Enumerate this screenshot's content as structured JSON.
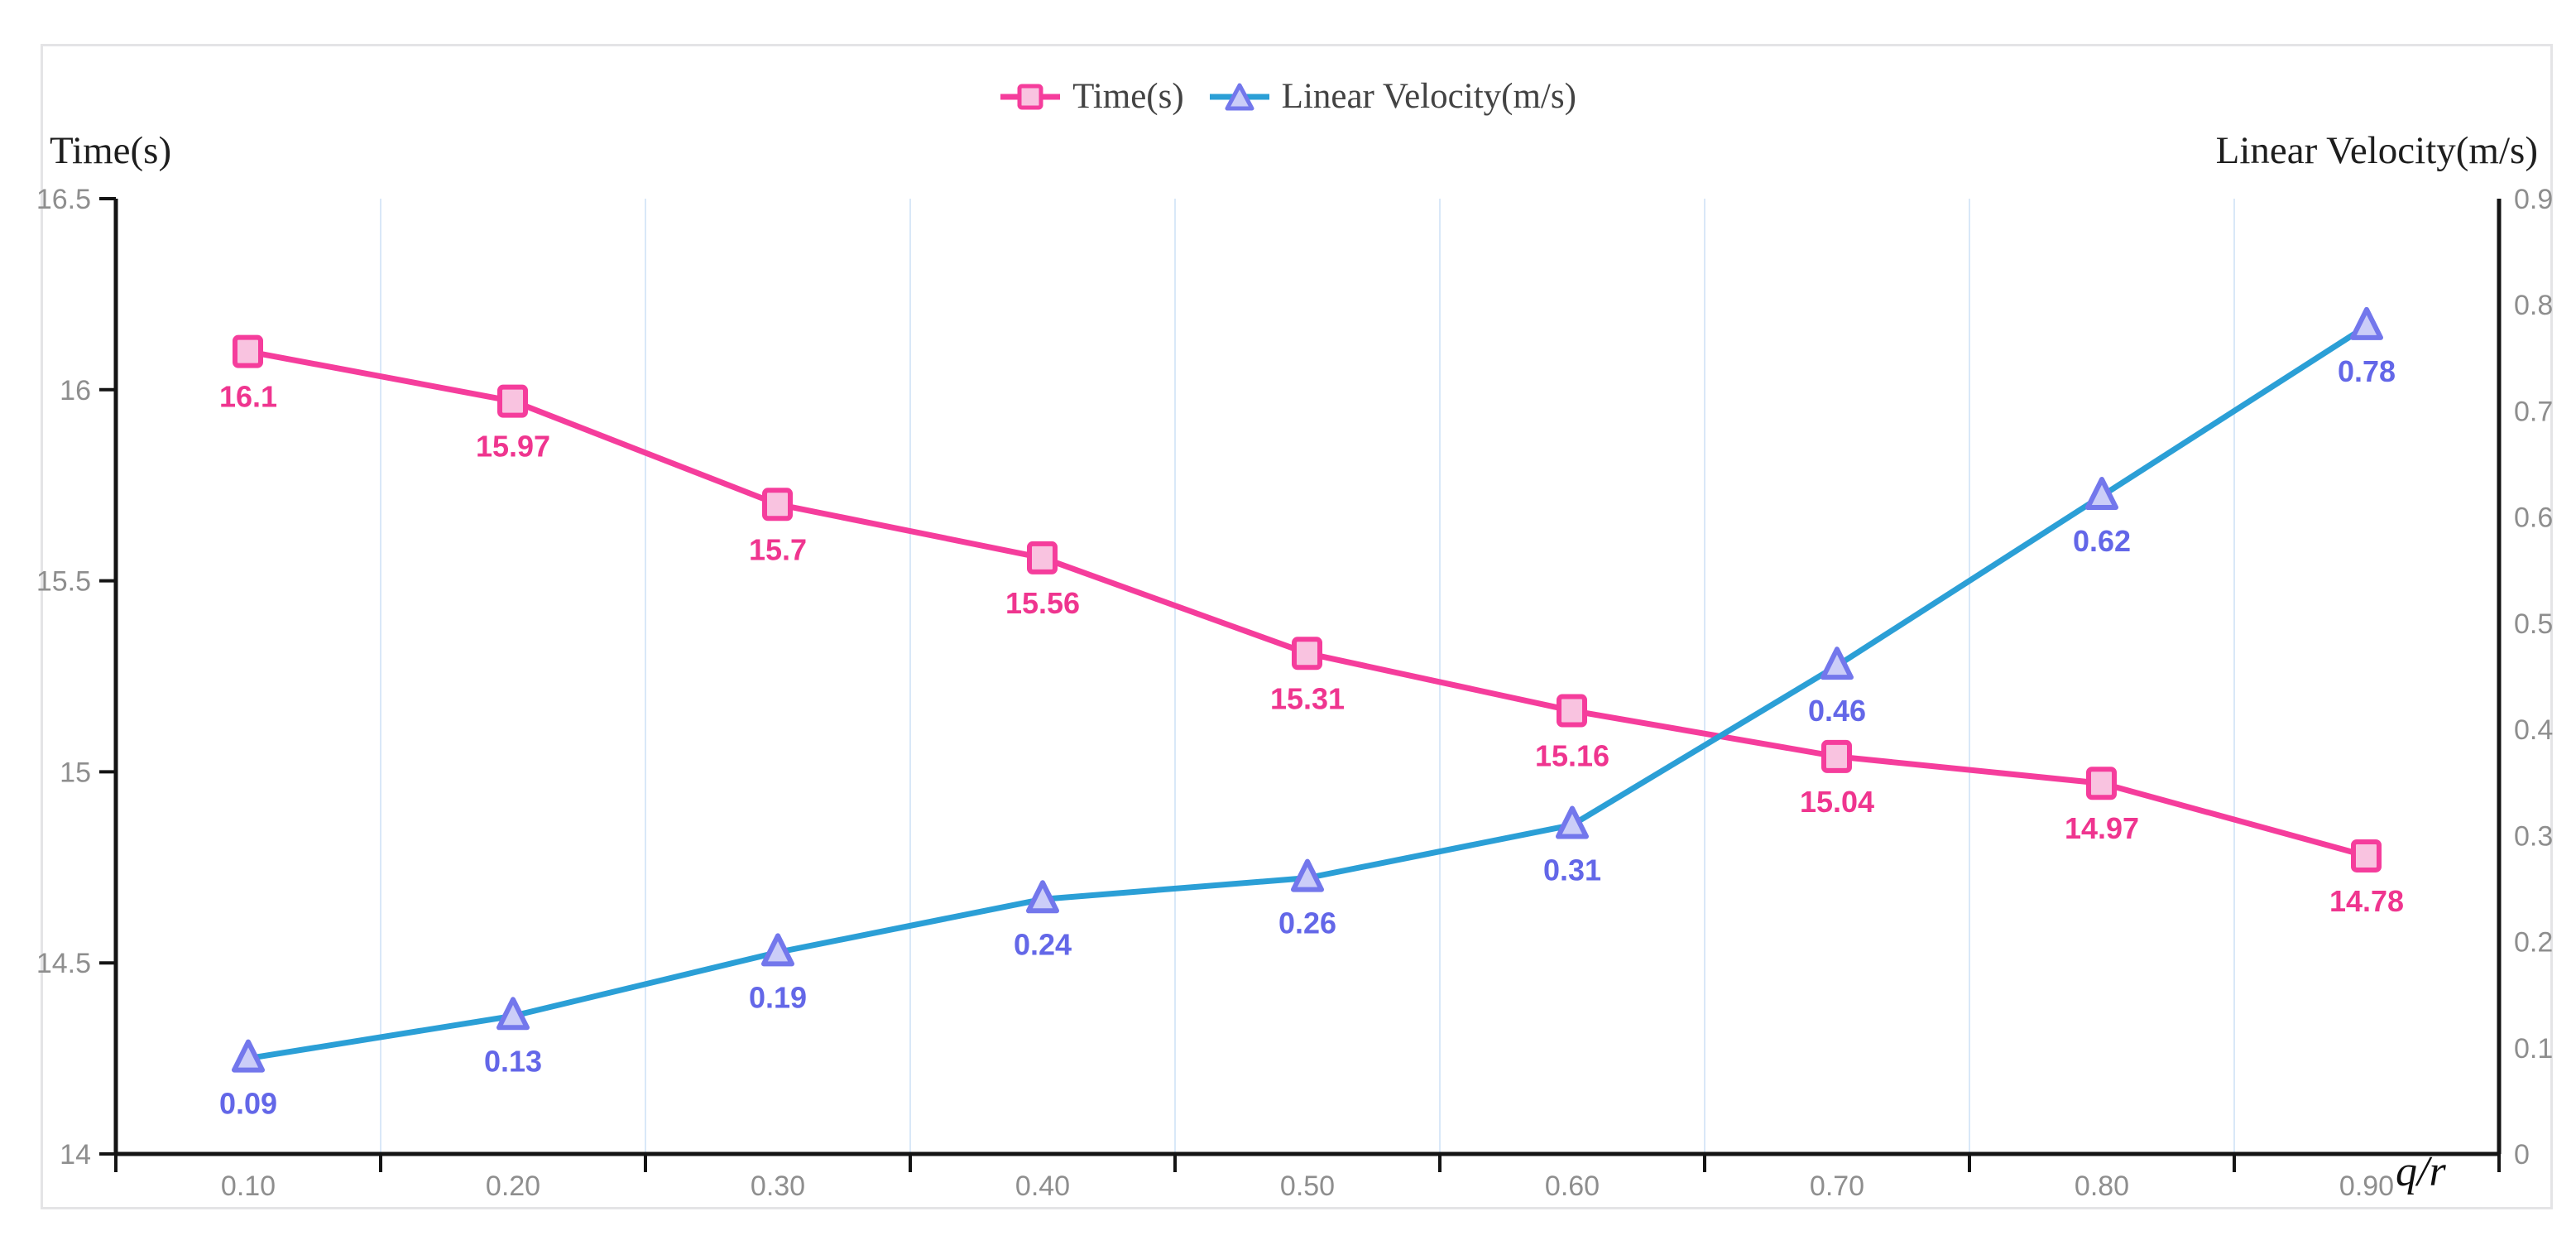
{
  "legend": {
    "items": [
      {
        "id": "time",
        "label": "Time(s)"
      },
      {
        "id": "velocity",
        "label": "Linear Velocity(m/s)"
      }
    ]
  },
  "chart_data": {
    "type": "line",
    "x_categories": [
      "0.10",
      "0.20",
      "0.30",
      "0.40",
      "0.50",
      "0.60",
      "0.70",
      "0.80",
      "0.90"
    ],
    "xlabel": "q/r",
    "left_axis": {
      "title": "Time(s)",
      "min": 14,
      "max": 16.5,
      "ticks": [
        "16.5",
        "16",
        "15.5",
        "15",
        "14.5",
        "14"
      ]
    },
    "right_axis": {
      "title": "Linear Velocity(m/s)",
      "min": 0,
      "max": 0.9,
      "ticks": [
        "0.9",
        "0.8",
        "0.7",
        "0.6",
        "0.5",
        "0.4",
        "0.3",
        "0.2",
        "0.1",
        "0"
      ]
    },
    "series": [
      {
        "id": "time",
        "name": "Time(s)",
        "axis": "left",
        "marker": "square",
        "values": [
          16.1,
          15.97,
          15.7,
          15.56,
          15.31,
          15.16,
          15.04,
          14.97,
          14.78
        ],
        "labels": [
          "16.1",
          "15.97",
          "15.7",
          "15.56",
          "15.31",
          "15.16",
          "15.04",
          "14.97",
          "14.78"
        ],
        "line_color": "#f53d9c",
        "marker_stroke": "#f53d9c",
        "marker_fill": "#f9c3e0",
        "label_color": "#ef358f"
      },
      {
        "id": "velocity",
        "name": "Linear Velocity(m/s)",
        "axis": "right",
        "marker": "triangle",
        "values": [
          0.09,
          0.13,
          0.19,
          0.24,
          0.26,
          0.31,
          0.46,
          0.62,
          0.78
        ],
        "labels": [
          "0.09",
          "0.13",
          "0.19",
          "0.24",
          "0.26",
          "0.31",
          "0.46",
          "0.62",
          "0.78"
        ],
        "line_color": "#2b9fd6",
        "marker_stroke": "#7377ec",
        "marker_fill": "#cbcdf8",
        "label_color": "#6367e8"
      }
    ],
    "grid": "vertical-only",
    "gridline_color": "#d9e8f8",
    "axis_line_color": "#141414",
    "tick_label_color": "#8e8e8e",
    "legend_position": "top-center"
  }
}
